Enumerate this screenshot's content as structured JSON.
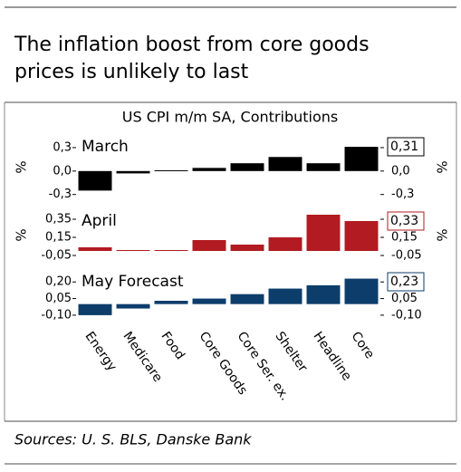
{
  "title": [
    "The inflation boost from core goods",
    "prices is unlikely to last"
  ],
  "subtitle": "US CPI m/m SA, Contributions",
  "source": "Sources: U. S. BLS, Danske Bank",
  "chart_data": [
    {
      "type": "bar",
      "title": "March",
      "color": "#000000",
      "y_label": "%",
      "y2_label": "%",
      "values": [
        -0.25,
        -0.03,
        0.01,
        0.04,
        0.1,
        0.18,
        0.1,
        0.31
      ],
      "value_labels": [
        null,
        null,
        null,
        null,
        null,
        null,
        null,
        "0,31"
      ],
      "ylim": [
        -0.35,
        0.45
      ],
      "yticks": [
        {
          "value": 0.3,
          "label": "0,3"
        },
        {
          "value": 0,
          "label": "0,0"
        },
        {
          "value": -0.3,
          "label": "-0,3"
        }
      ]
    },
    {
      "type": "bar",
      "title": "April",
      "color": "#b11b21",
      "y_label": "%",
      "y2_label": "%",
      "values": [
        0.04,
        0.01,
        0.01,
        0.12,
        0.07,
        0.15,
        0.4,
        0.33
      ],
      "value_labels": [
        null,
        null,
        null,
        null,
        null,
        null,
        null,
        "0,33"
      ],
      "ylim": [
        -0.1,
        0.45
      ],
      "yticks": [
        {
          "value": 0.35,
          "label": "0,35"
        },
        {
          "value": 0.15,
          "label": "0,15"
        },
        {
          "value": -0.05,
          "label": "-0,05"
        }
      ]
    },
    {
      "type": "bar",
      "title": "May Forecast",
      "color": "#0d3d6b",
      "categories": [
        "Energy",
        "Medicare",
        "Food",
        "Core Goods",
        "Core Ser. ex.",
        "Shelter",
        "Headline",
        "Core"
      ],
      "values": [
        -0.1,
        -0.04,
        0.03,
        0.05,
        0.09,
        0.14,
        0.17,
        0.23
      ],
      "value_labels": [
        null,
        null,
        null,
        null,
        null,
        null,
        null,
        "0,23"
      ],
      "ylim": [
        -0.15,
        0.3
      ],
      "yticks": [
        {
          "value": 0.2,
          "label": "0,20"
        },
        {
          "value": 0.05,
          "label": "0,05"
        },
        {
          "value": -0.1,
          "label": "-0,10"
        }
      ]
    }
  ]
}
